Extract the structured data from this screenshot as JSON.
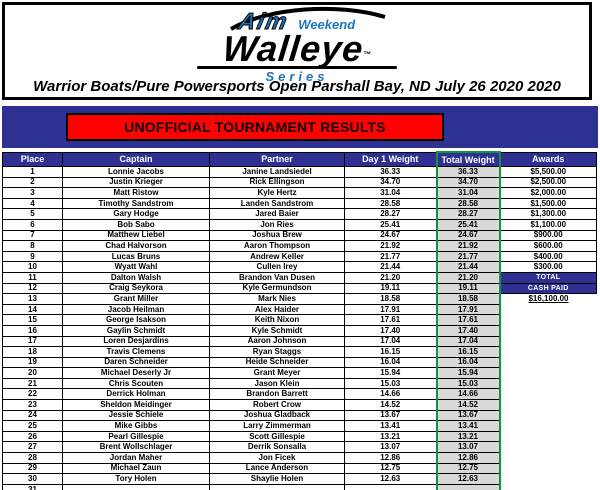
{
  "logo": {
    "aim": "Aim",
    "weekend": "Weekend",
    "walleye": "Walleye",
    "tm": "™",
    "series": "Series"
  },
  "title": "Warrior Boats/Pure Powersports Open Parshall Bay, ND July 26 2020 2020",
  "banner": "UNOFFICIAL TOURNAMENT RESULTS",
  "colors": {
    "band_blue": "#2E3192",
    "banner_red": "#FE0100",
    "logo_blue": "#1b75bb",
    "selection_green": "#149240",
    "total_col_gray": "#D9D9D9"
  },
  "table": {
    "headers": [
      "Place",
      "Captain",
      "Partner",
      "Day 1 Weight",
      "Total Weight",
      "Awards"
    ],
    "rows": [
      {
        "place": "1",
        "captain": "Lonnie Jacobs",
        "partner": "Janine Landsiedel",
        "day1": "36.33",
        "total": "36.33",
        "award": "$5,500.00",
        "awardStyle": "cash"
      },
      {
        "place": "2",
        "captain": "Justin Krieger",
        "partner": "Rick Ellingson",
        "day1": "34.70",
        "total": "34.70",
        "award": "$2,500.00",
        "awardStyle": "cash"
      },
      {
        "place": "3",
        "captain": "Matt Ristow",
        "partner": "Kyle Hertz",
        "day1": "31.04",
        "total": "31.04",
        "award": "$2,000.00",
        "awardStyle": "cash"
      },
      {
        "place": "4",
        "captain": "Timothy Sandstrom",
        "partner": "Landen Sandstrom",
        "day1": "28.58",
        "total": "28.58",
        "award": "$1,500.00",
        "awardStyle": "cash"
      },
      {
        "place": "5",
        "captain": "Gary Hodge",
        "partner": "Jared Baier",
        "day1": "28.27",
        "total": "28.27",
        "award": "$1,300.00",
        "awardStyle": "cash"
      },
      {
        "place": "6",
        "captain": "Bob Sabo",
        "partner": "Jon Ries",
        "day1": "25.41",
        "total": "25.41",
        "award": "$1,100.00",
        "awardStyle": "cash"
      },
      {
        "place": "7",
        "captain": "Matthew Liebel",
        "partner": "Joshua Brew",
        "day1": "24.67",
        "total": "24.67",
        "award": "$900.00",
        "awardStyle": "cash"
      },
      {
        "place": "8",
        "captain": "Chad Halvorson",
        "partner": "Aaron Thompson",
        "day1": "21.92",
        "total": "21.92",
        "award": "$600.00",
        "awardStyle": "cash"
      },
      {
        "place": "9",
        "captain": "Lucas Bruns",
        "partner": "Andrew Keller",
        "day1": "21.77",
        "total": "21.77",
        "award": "$400.00",
        "awardStyle": "cash"
      },
      {
        "place": "10",
        "captain": "Wyatt Wahl",
        "partner": "Cullen Irey",
        "day1": "21.44",
        "total": "21.44",
        "award": "$300.00",
        "awardStyle": "cash"
      },
      {
        "place": "11",
        "captain": "Dalton Walsh",
        "partner": "Brandon Van Dusen",
        "day1": "21.20",
        "total": "21.20",
        "award": "TOTAL",
        "awardStyle": "blue"
      },
      {
        "place": "12",
        "captain": "Craig Seykora",
        "partner": "Kyle Germundson",
        "day1": "19.11",
        "total": "19.11",
        "award": "CASH PAID",
        "awardStyle": "blue"
      },
      {
        "place": "13",
        "captain": "Grant Miller",
        "partner": "Mark Nies",
        "day1": "18.58",
        "total": "18.58",
        "award": "$16,100.00",
        "awardStyle": "underline"
      },
      {
        "place": "14",
        "captain": "Jacob Heilman",
        "partner": "Alex Haider",
        "day1": "17.91",
        "total": "17.91",
        "award": "",
        "awardStyle": "none"
      },
      {
        "place": "15",
        "captain": "George Isakson",
        "partner": "Keith Nixon",
        "day1": "17.61",
        "total": "17.61",
        "award": "",
        "awardStyle": "none"
      },
      {
        "place": "16",
        "captain": "Gaylin Schmidt",
        "partner": "Kyle Schmidt",
        "day1": "17.40",
        "total": "17.40",
        "award": "",
        "awardStyle": "none"
      },
      {
        "place": "17",
        "captain": "Loren Desjardins",
        "partner": "Aaron Johnson",
        "day1": "17.04",
        "total": "17.04",
        "award": "",
        "awardStyle": "none"
      },
      {
        "place": "18",
        "captain": "Travis Clemens",
        "partner": "Ryan Staggs",
        "day1": "16.15",
        "total": "16.15",
        "award": "",
        "awardStyle": "none"
      },
      {
        "place": "19",
        "captain": "Daren Schneider",
        "partner": "Heide Schneider",
        "day1": "16.04",
        "total": "16.04",
        "award": "",
        "awardStyle": "none"
      },
      {
        "place": "20",
        "captain": "Michael Deserly Jr",
        "partner": "Grant Meyer",
        "day1": "15.94",
        "total": "15.94",
        "award": "",
        "awardStyle": "none"
      },
      {
        "place": "21",
        "captain": "Chris Scouten",
        "partner": "Jason Klein",
        "day1": "15.03",
        "total": "15.03",
        "award": "",
        "awardStyle": "none"
      },
      {
        "place": "22",
        "captain": "Derrick Holman",
        "partner": "Brandon Barrett",
        "day1": "14.66",
        "total": "14.66",
        "award": "",
        "awardStyle": "none"
      },
      {
        "place": "23",
        "captain": "Sheldon Meidinger",
        "partner": "Robert Crow",
        "day1": "14.52",
        "total": "14.52",
        "award": "",
        "awardStyle": "none"
      },
      {
        "place": "24",
        "captain": "Jessie Schiele",
        "partner": "Joshua Gladback",
        "day1": "13.67",
        "total": "13.67",
        "award": "",
        "awardStyle": "none"
      },
      {
        "place": "25",
        "captain": "Mike Gibbs",
        "partner": "Larry Zimmerman",
        "day1": "13.41",
        "total": "13.41",
        "award": "",
        "awardStyle": "none"
      },
      {
        "place": "26",
        "captain": "Pearl Gillespie",
        "partner": "Scott Gillespie",
        "day1": "13.21",
        "total": "13.21",
        "award": "",
        "awardStyle": "none"
      },
      {
        "place": "27",
        "captain": "Brent Wollschlager",
        "partner": "Derrik Sonsalla",
        "day1": "13.07",
        "total": "13.07",
        "award": "",
        "awardStyle": "none"
      },
      {
        "place": "28",
        "captain": "Jordan Maher",
        "partner": "Jon Ficek",
        "day1": "12.86",
        "total": "12.86",
        "award": "",
        "awardStyle": "none"
      },
      {
        "place": "29",
        "captain": "Michael Zaun",
        "partner": "Lance Anderson",
        "day1": "12.75",
        "total": "12.75",
        "award": "",
        "awardStyle": "none"
      },
      {
        "place": "30",
        "captain": "Tory Holen",
        "partner": "Shaylie Holen",
        "day1": "12.63",
        "total": "12.63",
        "award": "",
        "awardStyle": "none"
      },
      {
        "place": "31",
        "captain": "",
        "partner": "",
        "day1": "",
        "total": "",
        "award": "",
        "awardStyle": "none"
      }
    ]
  }
}
